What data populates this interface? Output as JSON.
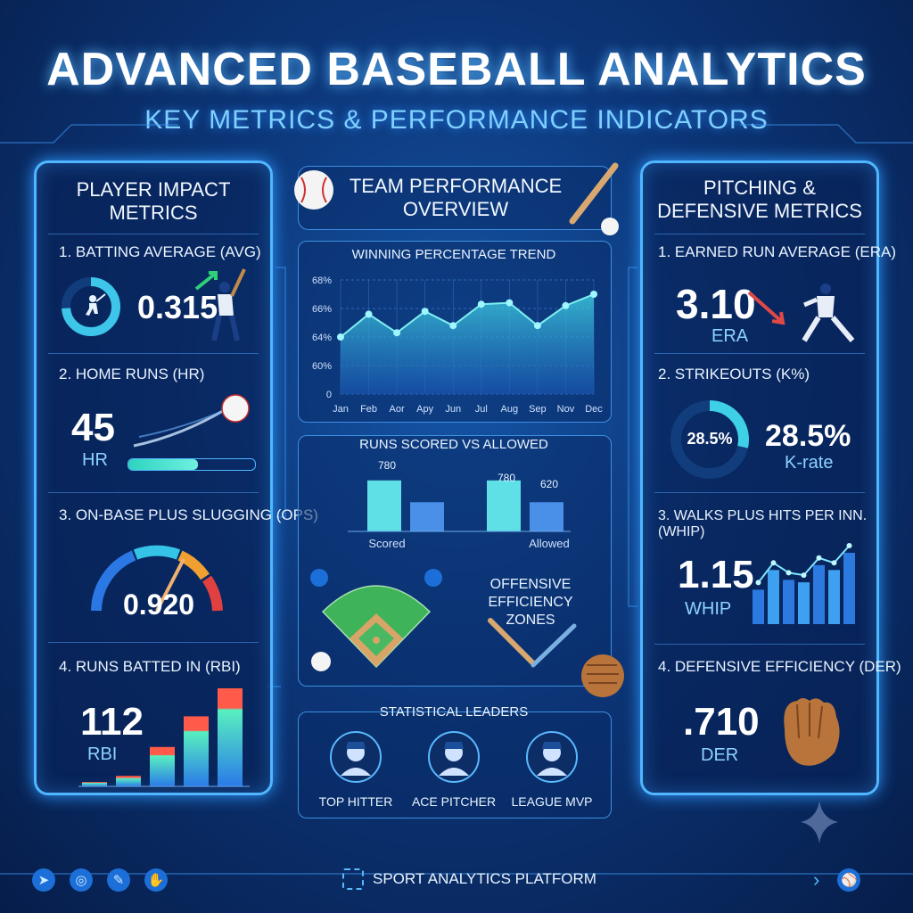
{
  "title": "ADVANCED BASEBALL ANALYTICS",
  "subtitle": "KEY METRICS & PERFORMANCE INDICATORS",
  "left": {
    "header_line1": "PLAYER IMPACT",
    "header_line2": "METRICS",
    "avg": {
      "label": "1. BATTING AVERAGE (AVG)",
      "value": "0.315"
    },
    "hr": {
      "label": "2. HOME RUNS (HR)",
      "value": "45",
      "unit": "HR",
      "progress": 0.55
    },
    "ops": {
      "label": "3. ON-BASE PLUS SLUGGING (OPS)",
      "value": "0.920"
    },
    "rbi": {
      "label": "4. RUNS BATTED IN (RBI)",
      "value": "112",
      "unit": "RBI"
    }
  },
  "center": {
    "header_line1": "TEAM PERFORMANCE",
    "header_line2": "OVERVIEW",
    "trend": {
      "title": "WINNING PERCENTAGE TREND",
      "y_ticks": [
        "68%",
        "66%",
        "64%",
        "60%",
        "0"
      ],
      "x_ticks": [
        "Jan",
        "Feb",
        "Aor",
        "Apy",
        "Jun",
        "Jul",
        "Aug",
        "Sep",
        "Nov",
        "Dec"
      ]
    },
    "runs": {
      "title": "RUNS SCORED VS ALLOWED",
      "label_a": "780",
      "label_b": "780",
      "label_c": "620",
      "cat_scored": "Scored",
      "cat_allowed": "Allowed"
    },
    "zones": {
      "line1": "OFFENSIVE EFFICIENCY",
      "line2": "ZONES"
    },
    "leaders": {
      "title": "STATISTICAL LEADERS",
      "items": [
        "TOP HITTER",
        "ACE PITCHER",
        "LEAGUE MVP"
      ]
    }
  },
  "right": {
    "header_line1": "PITCHING &",
    "header_line2": "DEFENSIVE METRICS",
    "era": {
      "label": "1. EARNED RUN AVERAGE (ERA)",
      "value": "3.10",
      "unit": "ERA"
    },
    "k": {
      "label": "2. STRIKEOUTS (K%)",
      "ring_value": "28.5%",
      "value": "28.5%",
      "unit": "K-rate",
      "fraction": 0.285
    },
    "whip": {
      "label": "3. WALKS PLUS HITS PER INN. (WHIP)",
      "value": "1.15",
      "unit": "WHIP"
    },
    "der": {
      "label": "4. DEFENSIVE EFFICIENCY (DER)",
      "value": ".710",
      "unit": "DER"
    }
  },
  "footer": {
    "label": "SPORT ANALYTICS PLATFORM"
  },
  "chart_data": [
    {
      "type": "area",
      "title": "WINNING PERCENTAGE TREND",
      "categories": [
        "Jan",
        "Feb",
        "Aor",
        "Apy",
        "Jun",
        "Jul",
        "Aug",
        "Sep",
        "Nov",
        "Dec"
      ],
      "values": [
        64.0,
        65.6,
        64.3,
        65.8,
        64.8,
        66.3,
        66.4,
        64.8,
        66.2,
        67.0
      ],
      "ylim": [
        60,
        68
      ]
    },
    {
      "type": "bar",
      "title": "RUNS SCORED VS ALLOWED",
      "categories": [
        "Scored",
        "Allowed"
      ],
      "series": [
        {
          "values": [
            780,
            780
          ]
        },
        {
          "values": [
            620,
            620
          ]
        }
      ],
      "ylim": [
        0,
        900
      ]
    },
    {
      "type": "bar",
      "title": "4. RUNS BATTED IN (RBI)",
      "values": [
        5,
        12,
        45,
        80,
        112
      ]
    },
    {
      "type": "bar",
      "title": "3. WALKS PLUS HITS PER INN. (WHIP)",
      "values": [
        28,
        44,
        36,
        34,
        48,
        44,
        58
      ]
    }
  ]
}
